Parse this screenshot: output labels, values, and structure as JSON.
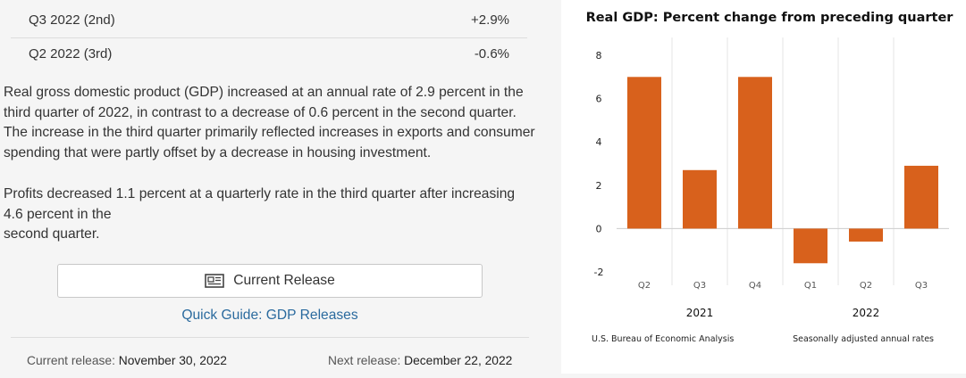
{
  "rows": [
    {
      "label": "Q3 2022 (2nd)",
      "value": "+2.9%"
    },
    {
      "label": "Q2 2022 (3rd)",
      "value": "-0.6%"
    }
  ],
  "paragraphs": {
    "gdp": "Real gross domestic product (GDP) increased at an annual rate of 2.9 percent in the third quarter of 2022, in contrast to a decrease of 0.6 percent in the second quarter. The increase in the third quarter primarily reflected increases in exports and consumer spending that were partly offset by a decrease in housing investment.",
    "profits_line1": "Profits decreased 1.1 percent at a quarterly rate in the third quarter after increasing",
    "profits_line2": "4.6 percent in the",
    "profits_line3": "second quarter."
  },
  "buttons": {
    "current_release": "Current Release"
  },
  "links": {
    "quick_guide": "Quick Guide: GDP Releases"
  },
  "footer": {
    "current_label": "Current release:",
    "current_date": "November 30, 2022",
    "next_label": "Next release:",
    "next_date": "December 22, 2022"
  },
  "colors": {
    "bar": "#d8611c",
    "link": "#2a6a9e"
  },
  "chart_data": {
    "type": "bar",
    "title": "Real GDP:  Percent change from preceding quarter",
    "categories": [
      "Q2",
      "Q3",
      "Q4",
      "Q1",
      "Q2",
      "Q3"
    ],
    "groups": [
      {
        "label": "2021",
        "start": 0,
        "end": 2
      },
      {
        "label": "2022",
        "start": 3,
        "end": 5
      }
    ],
    "values": [
      7.0,
      2.7,
      7.0,
      -1.6,
      -0.6,
      2.9
    ],
    "ylim": [
      -2,
      8
    ],
    "yticks": [
      8,
      6,
      4,
      2,
      0,
      -2
    ],
    "source": "U.S. Bureau of Economic Analysis",
    "note": "Seasonally adjusted annual rates"
  }
}
